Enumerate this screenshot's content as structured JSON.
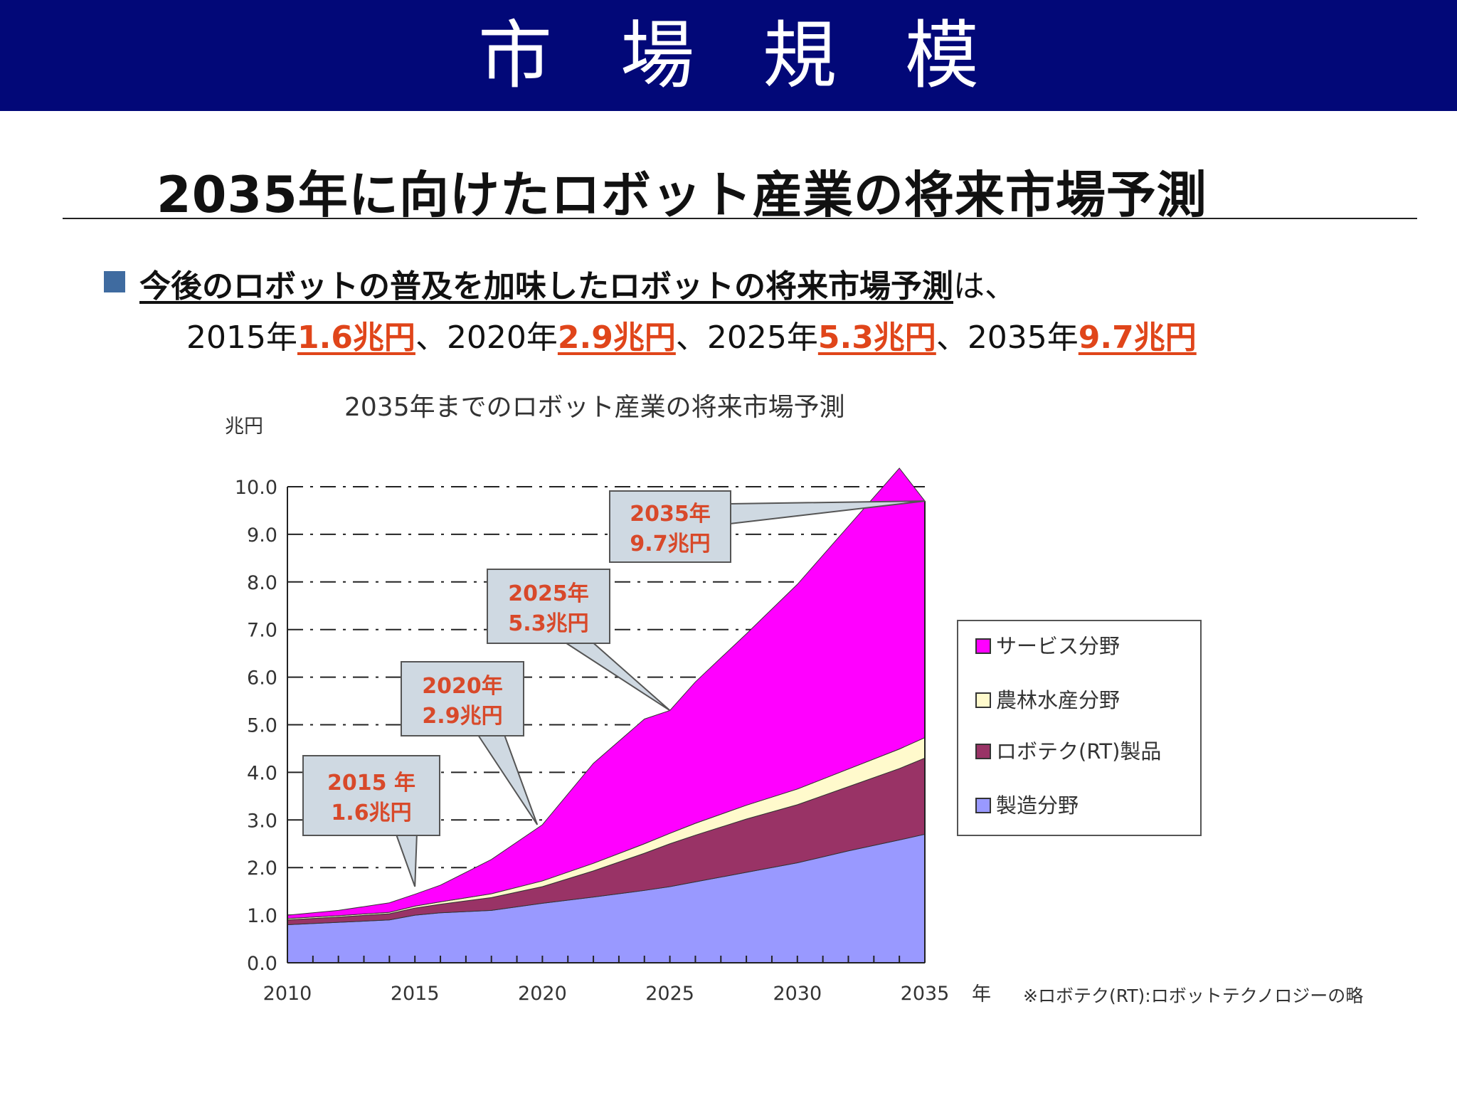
{
  "header": {
    "title": "市場規模"
  },
  "subtitle": "2035年に向けたロボット産業の将来市場予測",
  "bullet": {
    "line1_underlined": "今後のロボットの普及を加味したロボットの将来市場予測",
    "line1_suffix": "は、",
    "items": [
      {
        "year": "2015年",
        "value": "1.6兆円",
        "sep": "、"
      },
      {
        "year": "2020年",
        "value": "2.9兆円",
        "sep": "、"
      },
      {
        "year": "2025年",
        "value": "5.3兆円",
        "sep": "、"
      },
      {
        "year": "2035年",
        "value": "9.7兆円",
        "sep": ""
      }
    ]
  },
  "colors": {
    "header_bg": "#020878",
    "service": "#ff00ff",
    "agri": "#fffacc",
    "rt": "#993366",
    "manufacturing": "#9999ff",
    "callout_fill": "#cfd9e2",
    "callout_text": "#d8492a"
  },
  "chart_data": {
    "type": "area",
    "stacked": true,
    "title": "2035年までのロボット産業の将来市場予測",
    "ylabel": "兆円",
    "xlabel": "年",
    "ylim": [
      0,
      10
    ],
    "xlim": [
      2010,
      2035
    ],
    "yticks": [
      "0.0",
      "1.0",
      "2.0",
      "3.0",
      "4.0",
      "5.0",
      "6.0",
      "7.0",
      "8.0",
      "9.0",
      "10.0"
    ],
    "xticks": [
      "2010",
      "2015",
      "2020",
      "2025",
      "2030",
      "2035"
    ],
    "x": [
      2010,
      2012,
      2014,
      2015,
      2016,
      2018,
      2020,
      2022,
      2024,
      2025,
      2026,
      2028,
      2030,
      2032,
      2034,
      2035
    ],
    "series": [
      {
        "name": "製造分野",
        "key": "manufacturing",
        "values": [
          0.8,
          0.85,
          0.9,
          1.0,
          1.05,
          1.1,
          1.25,
          1.38,
          1.52,
          1.6,
          1.7,
          1.9,
          2.1,
          2.35,
          2.58,
          2.7
        ]
      },
      {
        "name": "ロボテク(RT)製品",
        "key": "rt",
        "values": [
          0.1,
          0.11,
          0.13,
          0.15,
          0.18,
          0.27,
          0.35,
          0.55,
          0.78,
          0.9,
          0.98,
          1.12,
          1.22,
          1.35,
          1.5,
          1.6
        ]
      },
      {
        "name": "農林水産分野",
        "key": "agri",
        "values": [
          0.03,
          0.03,
          0.03,
          0.04,
          0.05,
          0.08,
          0.12,
          0.16,
          0.2,
          0.22,
          0.25,
          0.29,
          0.33,
          0.37,
          0.41,
          0.43
        ]
      },
      {
        "name": "サービス分野",
        "key": "service",
        "values": [
          0.07,
          0.11,
          0.2,
          0.25,
          0.35,
          0.72,
          1.18,
          2.1,
          2.62,
          2.58,
          2.97,
          3.6,
          4.3,
          5.1,
          5.9,
          4.97
        ]
      }
    ],
    "callouts": [
      {
        "line1": "2015 年",
        "line2": "1.6兆円",
        "x": 2015,
        "y": 1.6
      },
      {
        "line1": "2020年",
        "line2": "2.9兆円",
        "x": 2019.8,
        "y": 2.9
      },
      {
        "line1": "2025年",
        "line2": "5.3兆円",
        "x": 2025,
        "y": 5.3
      },
      {
        "line1": "2035年",
        "line2": "9.7兆円",
        "x": 2035,
        "y": 9.7
      }
    ],
    "legend": {
      "placement": "right",
      "order": [
        "service",
        "agri",
        "rt",
        "manufacturing"
      ]
    },
    "footnote": "※ロボテク(RT):ロボットテクノロジーの略"
  }
}
